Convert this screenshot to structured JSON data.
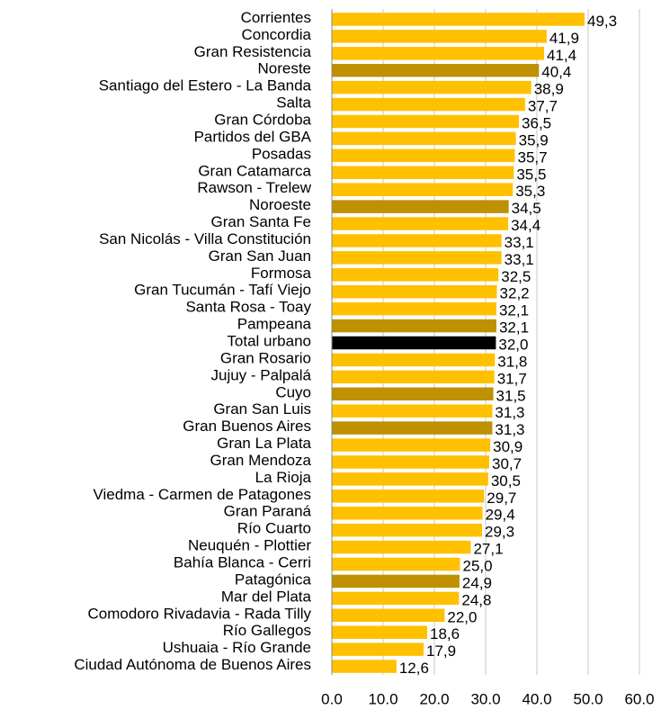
{
  "chart_data": {
    "type": "barh",
    "categories": [
      "Corrientes",
      "Concordia",
      "Gran Resistencia",
      "Noreste",
      "Santiago del Estero - La Banda",
      "Salta",
      "Gran Córdoba",
      "Partidos del GBA",
      "Posadas",
      "Gran Catamarca",
      "Rawson - Trelew",
      "Noroeste",
      "Gran Santa Fe",
      "San Nicolás - Villa Constitución",
      "Gran San Juan",
      "Formosa",
      "Gran Tucumán - Tafí Viejo",
      "Santa Rosa - Toay",
      "Pampeana",
      "Total urbano",
      "Gran Rosario",
      "Jujuy - Palpalá",
      "Cuyo",
      "Gran San Luis",
      "Gran Buenos Aires",
      "Gran La Plata",
      "Gran Mendoza",
      "La Rioja",
      "Viedma - Carmen de Patagones",
      "Gran Paraná",
      "Río Cuarto",
      "Neuquén - Plottier",
      "Bahía Blanca - Cerri",
      "Patagónica",
      "Mar del Plata",
      "Comodoro Rivadavia - Rada Tilly",
      "Río Gallegos",
      "Ushuaia - Río Grande",
      "Ciudad Autónoma de Buenos Aires"
    ],
    "values": [
      49.3,
      41.9,
      41.4,
      40.4,
      38.9,
      37.7,
      36.5,
      35.9,
      35.7,
      35.5,
      35.3,
      34.5,
      34.4,
      33.1,
      33.1,
      32.5,
      32.2,
      32.1,
      32.1,
      32.0,
      31.8,
      31.7,
      31.5,
      31.3,
      31.3,
      30.9,
      30.7,
      30.5,
      29.7,
      29.4,
      29.3,
      27.1,
      25.0,
      24.9,
      24.8,
      22.0,
      18.6,
      17.9,
      12.6
    ],
    "value_labels": [
      "49,3",
      "41,9",
      "41,4",
      "40,4",
      "38,9",
      "37,7",
      "36,5",
      "35,9",
      "35,7",
      "35,5",
      "35,3",
      "34,5",
      "34,4",
      "33,1",
      "33,1",
      "32,5",
      "32,2",
      "32,1",
      "32,1",
      "32,0",
      "31,8",
      "31,7",
      "31,5",
      "31,3",
      "31,3",
      "30,9",
      "30,7",
      "30,5",
      "29,7",
      "29,4",
      "29,3",
      "27,1",
      "25,0",
      "24,9",
      "24,8",
      "22,0",
      "18,6",
      "17,9",
      "12,6"
    ],
    "colors": [
      "#ffc000",
      "#ffc000",
      "#ffc000",
      "#bf9000",
      "#ffc000",
      "#ffc000",
      "#ffc000",
      "#ffc000",
      "#ffc000",
      "#ffc000",
      "#ffc000",
      "#bf9000",
      "#ffc000",
      "#ffc000",
      "#ffc000",
      "#ffc000",
      "#ffc000",
      "#ffc000",
      "#bf9000",
      "#000000",
      "#ffc000",
      "#ffc000",
      "#bf9000",
      "#ffc000",
      "#bf9000",
      "#ffc000",
      "#ffc000",
      "#ffc000",
      "#ffc000",
      "#ffc000",
      "#ffc000",
      "#ffc000",
      "#ffc000",
      "#bf9000",
      "#ffc000",
      "#ffc000",
      "#ffc000",
      "#ffc000",
      "#ffc000"
    ],
    "xlim": [
      0,
      60
    ],
    "xticks": [
      {
        "value": 0,
        "label": "0.0"
      },
      {
        "value": 10,
        "label": "10.0"
      },
      {
        "value": 20,
        "label": "20.0"
      },
      {
        "value": 30,
        "label": "30.0"
      },
      {
        "value": 40,
        "label": "40.0"
      },
      {
        "value": 50,
        "label": "50.0"
      },
      {
        "value": 60,
        "label": "60.0"
      }
    ],
    "grid": true
  }
}
